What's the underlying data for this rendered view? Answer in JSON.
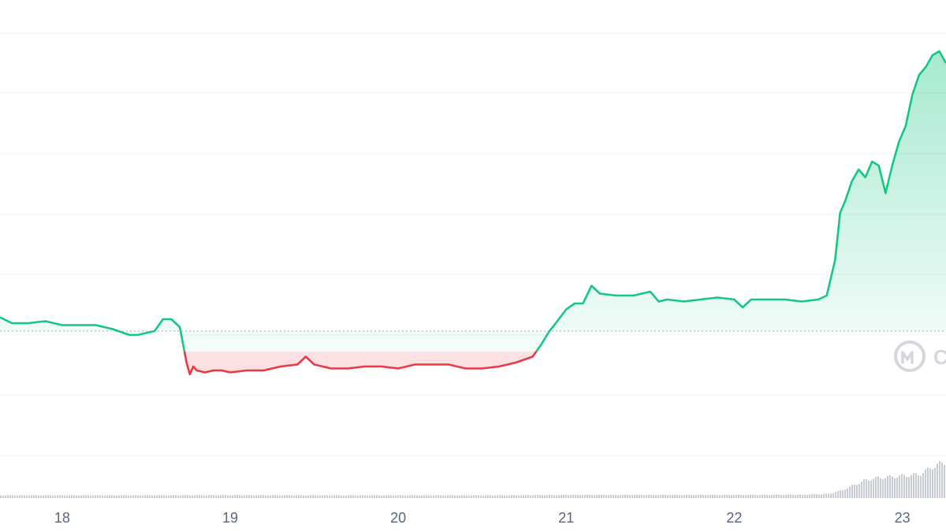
{
  "chart_data": {
    "type": "line",
    "title": "",
    "xlabel": "",
    "ylabel": "",
    "x_ticks": [
      "18",
      "19",
      "20",
      "21",
      "22",
      "23"
    ],
    "x_range": [
      17.63,
      23.26
    ],
    "y_axis_labels_visible": false,
    "grid": "horizontal",
    "reference_line": {
      "style": "dotted",
      "value": 0.44
    },
    "colors": {
      "above": "#16c784",
      "below": "#ea3943",
      "volume": "#c7cbd3",
      "watermark": "#d0d3da"
    },
    "watermark_icon": "coinmarketcap-logo-icon",
    "series": [
      {
        "x": [
          17.63,
          17.7,
          17.8,
          17.9,
          18.0,
          18.1,
          18.2,
          18.3,
          18.4,
          18.45,
          18.5,
          18.55,
          18.6,
          18.65,
          18.7,
          18.74,
          18.76,
          18.78,
          18.8,
          18.85,
          18.9,
          18.95,
          19.0,
          19.1,
          19.2,
          19.3,
          19.4,
          19.45,
          19.5,
          19.6,
          19.7,
          19.8,
          19.9,
          20.0,
          20.1,
          20.2,
          20.3,
          20.4,
          20.5,
          20.6,
          20.7,
          20.8,
          20.85,
          20.9,
          20.92,
          21.0,
          21.05,
          21.1,
          21.15,
          21.2,
          21.3,
          21.4,
          21.5,
          21.55,
          21.6,
          21.7,
          21.8,
          21.9,
          22.0,
          22.05,
          22.1,
          22.2,
          22.3,
          22.4,
          22.5,
          22.55,
          22.6,
          22.63,
          22.66,
          22.7,
          22.74,
          22.78,
          22.82,
          22.86,
          22.9,
          22.94,
          22.98,
          23.02,
          23.06,
          23.1,
          23.14,
          23.18,
          23.22,
          23.26
        ],
        "y": [
          0.475,
          0.46,
          0.46,
          0.465,
          0.455,
          0.455,
          0.455,
          0.445,
          0.43,
          0.43,
          0.435,
          0.44,
          0.47,
          0.47,
          0.45,
          0.36,
          0.33,
          0.35,
          0.34,
          0.335,
          0.34,
          0.34,
          0.335,
          0.34,
          0.34,
          0.35,
          0.355,
          0.375,
          0.355,
          0.345,
          0.345,
          0.35,
          0.35,
          0.345,
          0.355,
          0.355,
          0.355,
          0.345,
          0.345,
          0.35,
          0.36,
          0.375,
          0.405,
          0.44,
          0.45,
          0.495,
          0.51,
          0.51,
          0.555,
          0.535,
          0.53,
          0.53,
          0.54,
          0.515,
          0.52,
          0.515,
          0.52,
          0.525,
          0.52,
          0.5,
          0.52,
          0.52,
          0.52,
          0.515,
          0.52,
          0.53,
          0.62,
          0.74,
          0.77,
          0.82,
          0.85,
          0.83,
          0.87,
          0.86,
          0.79,
          0.86,
          0.92,
          0.96,
          1.04,
          1.09,
          1.11,
          1.14,
          1.15,
          1.12
        ]
      }
    ],
    "volume": {
      "x": [
        17.63,
        18.0,
        18.5,
        19.0,
        19.5,
        20.0,
        20.5,
        20.8,
        21.0,
        21.5,
        22.0,
        22.4,
        22.55,
        22.62,
        22.7,
        22.78,
        22.86,
        22.94,
        23.02,
        23.1,
        23.18,
        23.26
      ],
      "values": [
        0.12,
        0.12,
        0.12,
        0.13,
        0.12,
        0.12,
        0.12,
        0.13,
        0.14,
        0.14,
        0.14,
        0.15,
        0.18,
        0.3,
        0.55,
        0.8,
        0.9,
        0.95,
        1.0,
        1.05,
        1.4,
        1.6
      ]
    }
  },
  "watermark": {
    "text": "C"
  }
}
